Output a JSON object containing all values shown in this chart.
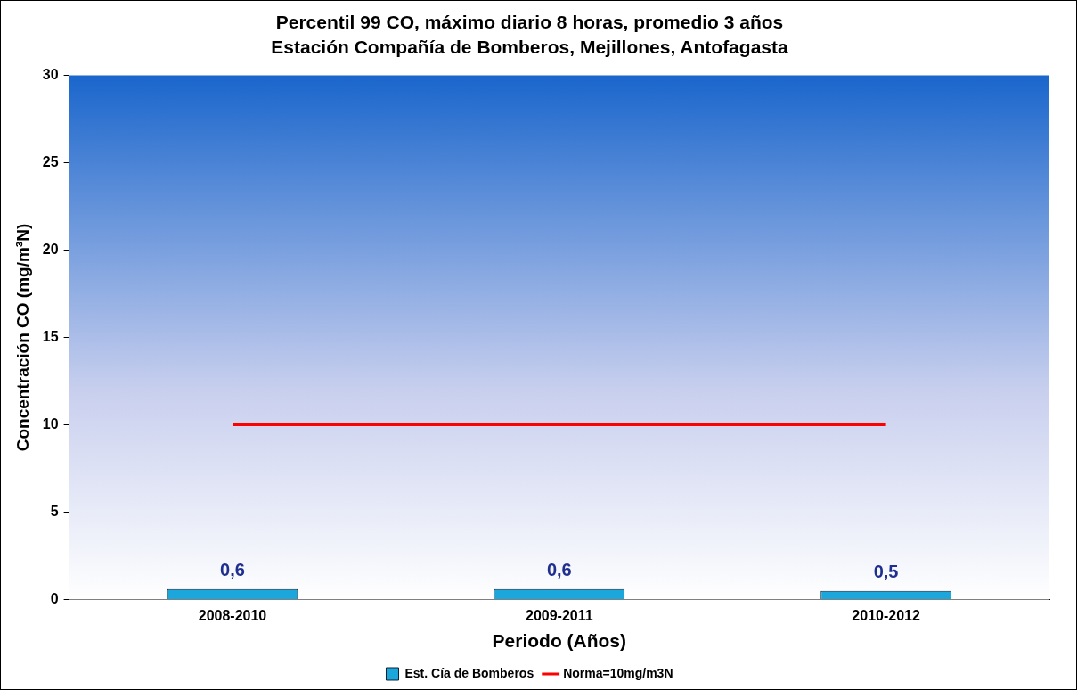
{
  "chart_data": {
    "type": "bar",
    "title": "Percentil 99 CO, máximo diario 8 horas, promedio 3 años",
    "subtitle": "Estación Compañía de Bomberos, Mejillones, Antofagasta",
    "xlabel": "Periodo (Años)",
    "ylabel": "Concentración CO (mg/m³N)",
    "categories": [
      "2008-2010",
      "2009-2011",
      "2010-2012"
    ],
    "series": [
      {
        "name": "Est. Cía de Bomberos",
        "color": "#1ba6dc",
        "values": [
          0.6,
          0.6,
          0.5
        ],
        "value_labels": [
          "0,6",
          "0,6",
          "0,5"
        ]
      },
      {
        "name": "Norma=10mg/m3N",
        "type": "line",
        "color": "#ff0000",
        "values": [
          10,
          10,
          10
        ],
        "marker": "none"
      }
    ],
    "ylim": [
      0,
      30
    ],
    "yticks": [
      0,
      5,
      10,
      15,
      20,
      25,
      30
    ],
    "grid": false,
    "legend": "bottom"
  }
}
